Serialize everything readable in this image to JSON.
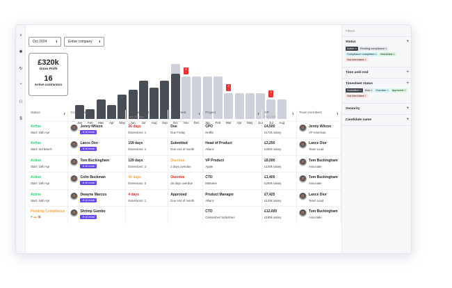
{
  "rail_icons": [
    "search-icon",
    "grid-icon",
    "refresh-icon",
    "up-icon",
    "users-icon",
    "dollar-icon"
  ],
  "filters_bar": {
    "period": "Oct 2024",
    "scope": "Entire company"
  },
  "kpi": {
    "gross_profit": "£320k",
    "gross_profit_label": "Gross Profit",
    "active": "16",
    "active_label": "Active contractors"
  },
  "chart_data": {
    "type": "bar",
    "categories": [
      "Jan",
      "Feb",
      "Mar",
      "Apr",
      "May",
      "Jun",
      "Jul",
      "Aug",
      "Sep",
      "Oct",
      "Nov",
      "Dec",
      "Jan",
      "Feb",
      "Mar",
      "Apr",
      "May",
      "Jun",
      "Jul",
      "Aug"
    ],
    "values": [
      16,
      11,
      22,
      16,
      27,
      33,
      43,
      35,
      43,
      51,
      48,
      48,
      48,
      48,
      29,
      29,
      29,
      29,
      22,
      22
    ],
    "projected_extra": {
      "Oct": 11
    },
    "actual_count": 10,
    "colors": {
      "actual": "#474e56",
      "forecast": "#cdd1da",
      "badge": "#f03030"
    },
    "badges": [
      {
        "index": 10,
        "label": "2"
      },
      {
        "index": 14,
        "label": "4"
      },
      {
        "index": 18,
        "label": "1"
      }
    ]
  },
  "table": {
    "headers": [
      {
        "label": "Status"
      },
      {
        "label": "Contractors"
      },
      {
        "label": "Time until end",
        "sub": "avg: 34 days"
      },
      {
        "label": "Timesheet"
      },
      {
        "label": "Project"
      },
      {
        "label": "GP",
        "sub": "£320,000"
      },
      {
        "label": "Team members"
      }
    ],
    "ai_label": "AI email",
    "rows": [
      {
        "status": "Active",
        "sc": "g",
        "start": "Start: 16th Apr",
        "name": "Jenny Wilson",
        "time": "26 days",
        "tc": "r",
        "ext": "Extensions: 1",
        "ts": "Due",
        "tsc": "",
        "tss": "Due Friday",
        "proj": "CPO",
        "co": "Netflix",
        "gp": "£4,500",
        "sal": "£170k salary",
        "tm": "Jenny Wilson",
        "role": "VP Americas"
      },
      {
        "status": "Active",
        "sc": "g",
        "start": "Start: 3rd March",
        "name": "Lance Dior",
        "time": "159 days",
        "tc": "",
        "ext": "Extensions: 2",
        "ts": "Submitted",
        "tsc": "",
        "tss": "Due end of month",
        "proj": "Head of Product",
        "co": "Allianz",
        "gp": "£3,250",
        "sal": "£300k salary",
        "tm": "Lance Dior",
        "role": "Team Lead"
      },
      {
        "status": "Active",
        "sc": "g",
        "start": "Start: 16th Apr",
        "name": "Tom Buckingham",
        "time": "129 days",
        "tc": "",
        "ext": "Extensions: 3",
        "ts": "Overdue",
        "tsc": "o",
        "tss": "2 days overdue",
        "proj": "VP Product",
        "co": "Apple",
        "gp": "£8,000",
        "sal": "£120k salary",
        "tm": "Tom Buckingham",
        "role": "Associate"
      },
      {
        "status": "Active",
        "sc": "g",
        "start": "Start: 16th Apr",
        "name": "Colin Buckman",
        "time": "40 days",
        "tc": "o",
        "ext": "Extensions: 0",
        "ts": "Overdue",
        "tsc": "r",
        "tss": "26 days overdue",
        "proj": "CTO",
        "co": "Mabutee",
        "gp": "£1,405",
        "sal": "£250k salary",
        "tm": "Tom Buckingham",
        "role": "Associate"
      },
      {
        "status": "Active",
        "sc": "g",
        "start": "Start: 16th Apr",
        "name": "Dwayne Marcus",
        "time": "4 days",
        "tc": "r",
        "ext": "Extensions: 1",
        "ts": "Approved",
        "tsc": "",
        "tss": "Due end of month",
        "proj": "Product Manager",
        "co": "Allianz",
        "gp": "£7,425",
        "sal": "£120k salary",
        "tm": "Lance Dior",
        "role": "Team Lead"
      },
      {
        "status": "Pending Compliance",
        "sc": "o",
        "start": "",
        "name": "Shrimp Gumbo",
        "time": "",
        "tc": "",
        "ext": "",
        "ts": "",
        "tsc": "",
        "tss": "",
        "proj": "CTO",
        "co": "Camambert Industries",
        "gp": "£12,000",
        "sal": "£180k salary",
        "tm": "Tom Buckingham",
        "role": "Associate"
      }
    ]
  },
  "filters": {
    "title": "Filters",
    "sections": [
      {
        "title": "Status",
        "chips": [
          {
            "l": "Active",
            "bg": "#3d434b",
            "c": "#fff"
          },
          {
            "l": "Pending compliance",
            "bg": "#e6e7ea",
            "c": "#222"
          },
          {
            "l": "Compliance completed",
            "bg": "#d4f3f8",
            "c": "#222"
          },
          {
            "l": "Interested",
            "bg": "#d8f7df",
            "c": "#222"
          },
          {
            "l": "Not interested",
            "bg": "#fde3e0",
            "c": "#222"
          }
        ]
      },
      {
        "title": "Time until end",
        "chips": []
      },
      {
        "title": "Timesheet status",
        "chips": [
          {
            "l": "Submitted",
            "bg": "#3d434b",
            "c": "#fff"
          },
          {
            "l": "Due",
            "bg": "#e6e7ea",
            "c": "#222"
          },
          {
            "l": "Overdue",
            "bg": "#d4f3f8",
            "c": "#222"
          },
          {
            "l": "Approved",
            "bg": "#d8f7df",
            "c": "#222"
          },
          {
            "l": "Not interested",
            "bg": "#fde3e0",
            "c": "#222"
          }
        ]
      },
      {
        "title": "Seniority",
        "chips": []
      },
      {
        "title": "Candidate name",
        "chips": []
      }
    ]
  }
}
